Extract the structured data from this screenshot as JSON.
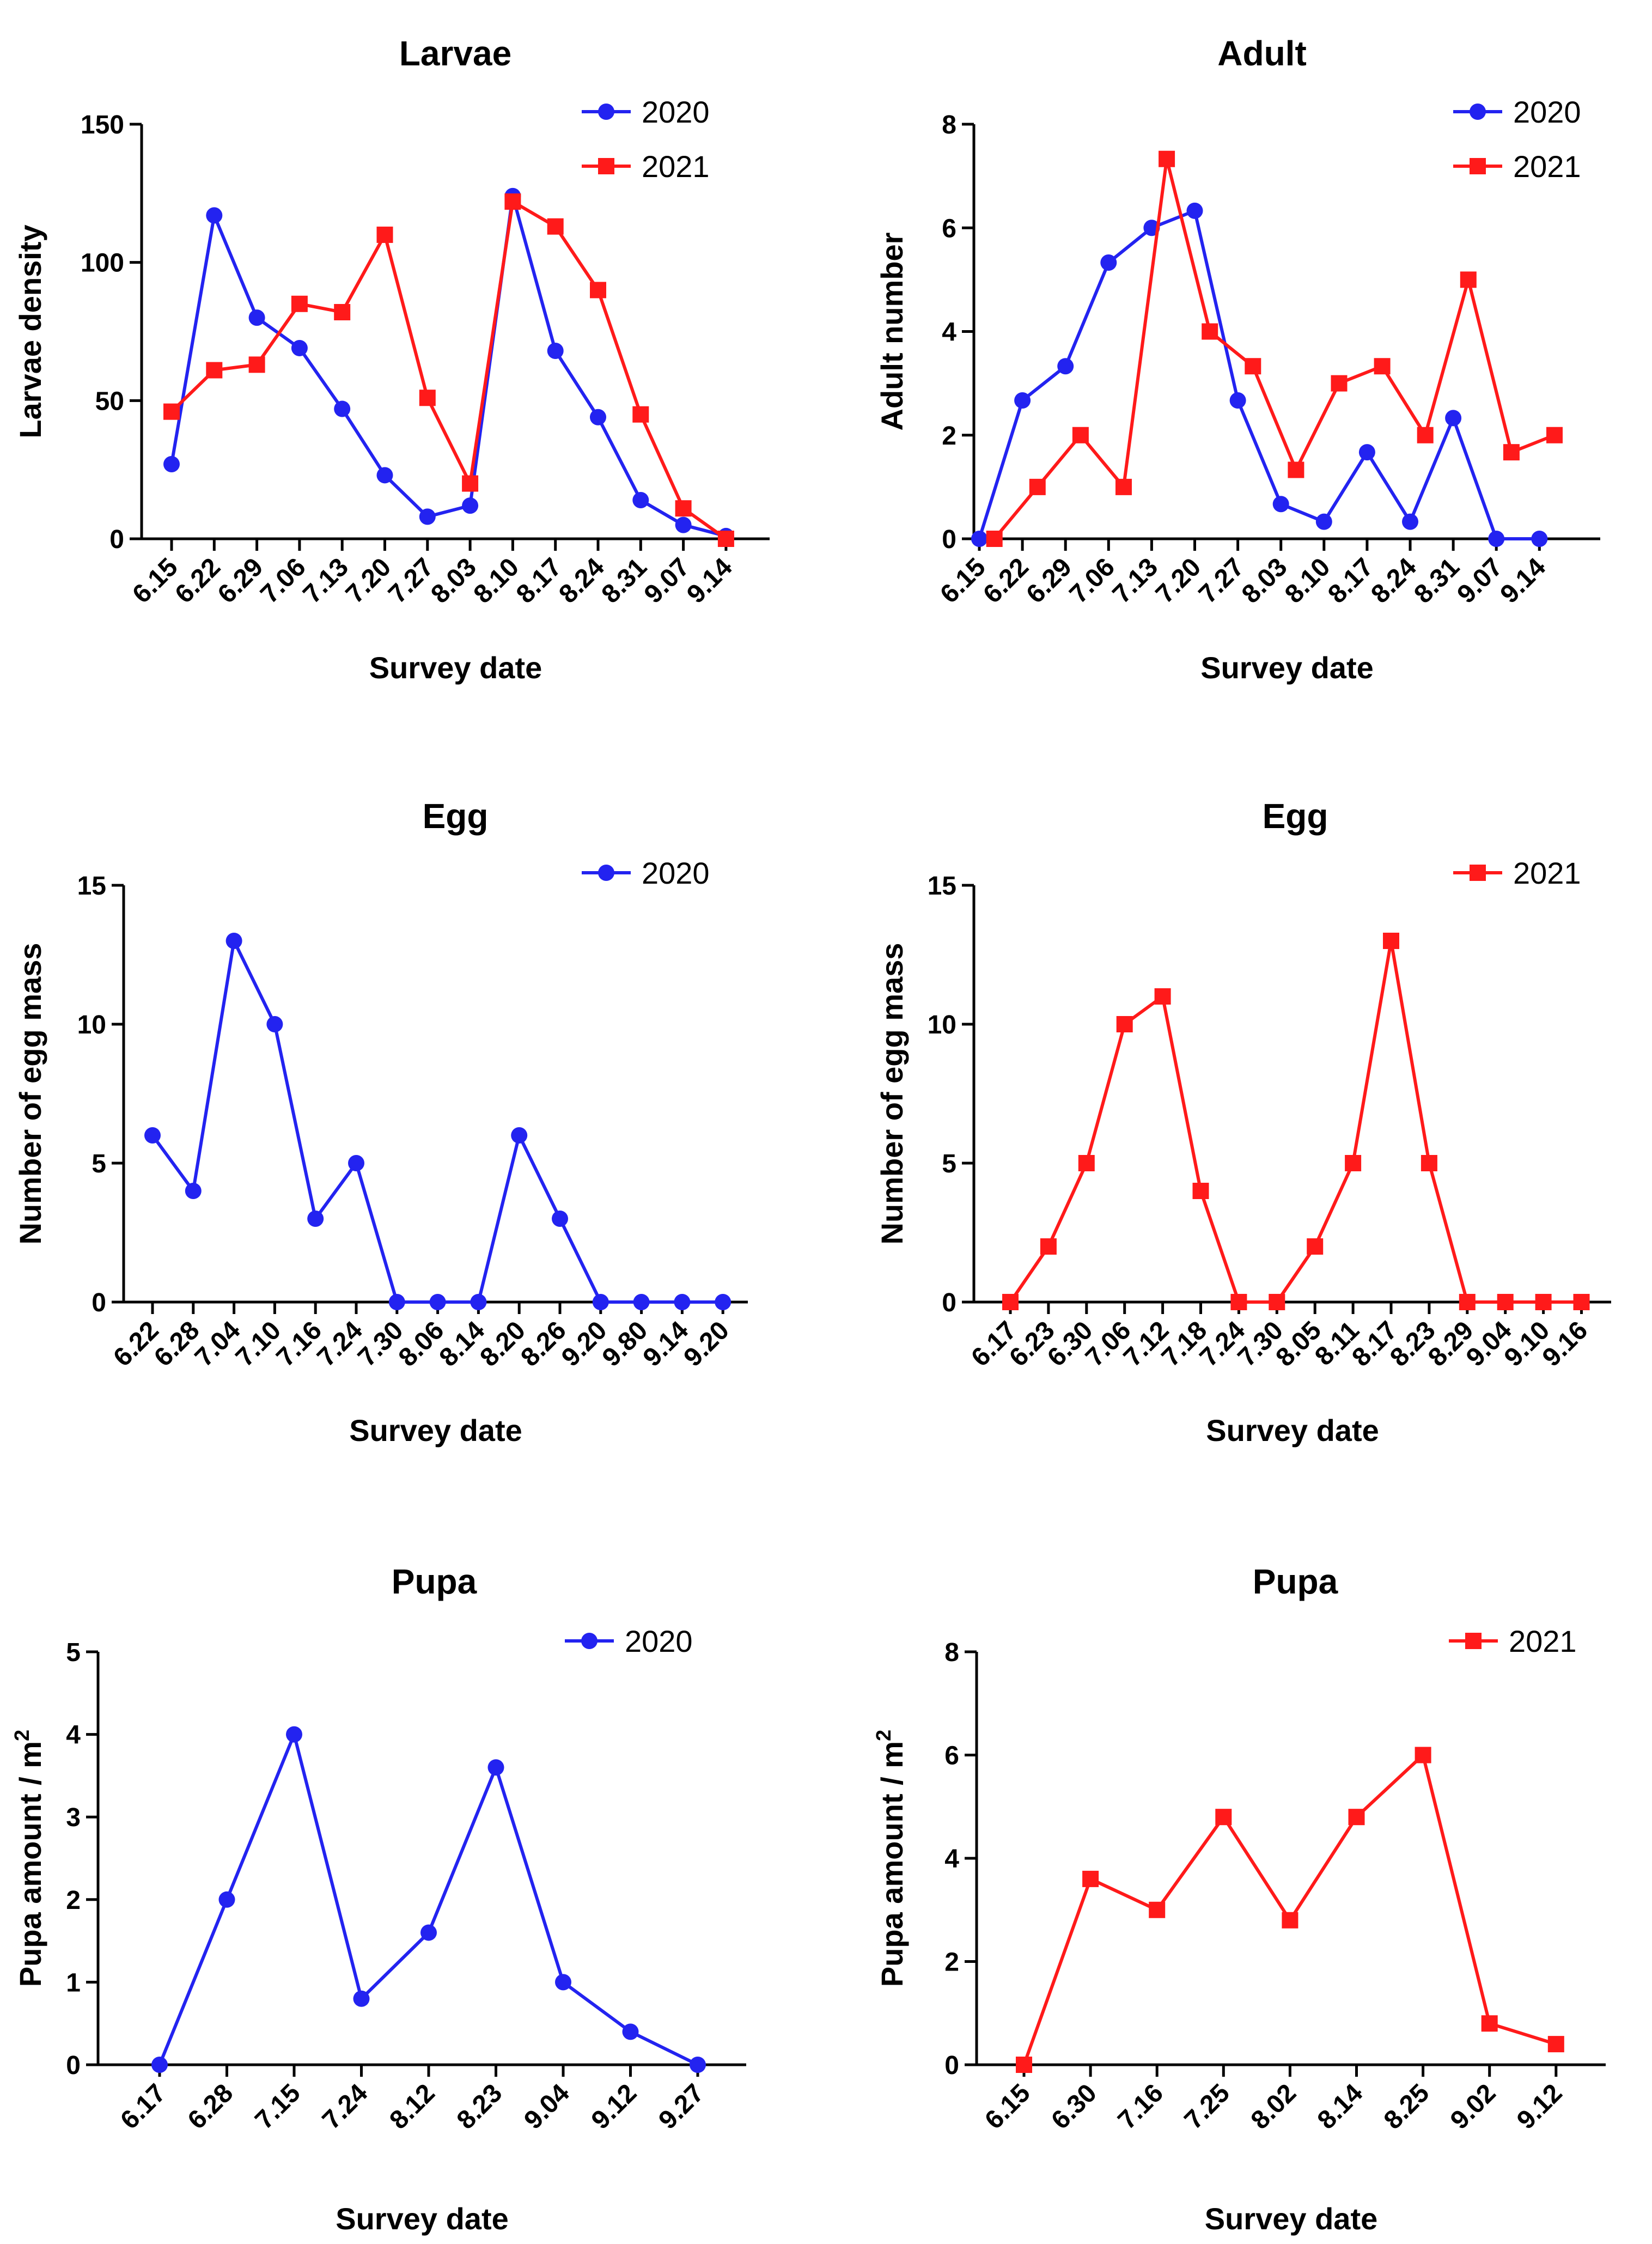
{
  "chart_data": [
    {
      "type": "line",
      "title": "Larvae",
      "xlabel": "Survey date",
      "ylabel": "Larvae density",
      "ylim": [
        0,
        150
      ],
      "yticks": [
        "0",
        "50",
        "100",
        "150"
      ],
      "categories": [
        "6.15",
        "6.22",
        "6.29",
        "7.06",
        "7.13",
        "7.20",
        "7.27",
        "8.03",
        "8.10",
        "8.17",
        "8.24",
        "8.31",
        "9.07",
        "9.14"
      ],
      "legend": "top-right",
      "series": [
        {
          "name": "2020",
          "color": "#2323f0",
          "marker": "circle",
          "offset": 0,
          "values": [
            27,
            117,
            80,
            69,
            47,
            23,
            8,
            12,
            124,
            68,
            44,
            14,
            5,
            1
          ]
        },
        {
          "name": "2021",
          "color": "#ff1a1a",
          "marker": "square",
          "offset": 0,
          "values": [
            46,
            61,
            63,
            85,
            82,
            110,
            51,
            20,
            122,
            113,
            90,
            45,
            11,
            0
          ]
        }
      ]
    },
    {
      "type": "line",
      "title": "Adult",
      "xlabel": "Survey date",
      "ylabel": "Adult number",
      "ylim": [
        0,
        8
      ],
      "yticks": [
        "0",
        "2",
        "4",
        "6",
        "8"
      ],
      "categories": [
        "6.15",
        "6.22",
        "6.29",
        "7.06",
        "7.13",
        "7.20",
        "7.27",
        "8.03",
        "8.10",
        "8.17",
        "8.24",
        "8.31",
        "9.07",
        "9.14"
      ],
      "legend": "top-right",
      "series": [
        {
          "name": "2020",
          "color": "#2323f0",
          "marker": "circle",
          "offset": 0,
          "values": [
            0,
            2.67,
            3.33,
            5.33,
            6,
            6.33,
            2.67,
            0.67,
            0.33,
            1.67,
            0.33,
            2.33,
            0,
            0
          ]
        },
        {
          "name": "2021",
          "color": "#ff1a1a",
          "marker": "square",
          "offset": 0.35,
          "values": [
            0,
            1,
            2,
            1,
            7.33,
            4,
            3.33,
            1.33,
            3,
            3.33,
            2,
            5,
            1.67,
            2
          ]
        }
      ]
    },
    {
      "type": "line",
      "title": "Egg",
      "xlabel": "Survey date",
      "ylabel": "Number of egg mass",
      "ylim": [
        0,
        15
      ],
      "yticks": [
        "0",
        "5",
        "10",
        "15"
      ],
      "categories": [
        "6.22",
        "6.28",
        "7.04",
        "7.10",
        "7.16",
        "7.24",
        "7.30",
        "8.06",
        "8.14",
        "8.20",
        "8.26",
        "9.20",
        "9.80",
        "9.14",
        "9.20"
      ],
      "legend": "top-right",
      "series": [
        {
          "name": "2020",
          "color": "#2323f0",
          "marker": "circle",
          "offset": 0,
          "values": [
            6,
            4,
            13,
            10,
            3,
            5,
            0,
            0,
            0,
            6,
            3,
            0,
            0,
            0,
            0
          ]
        }
      ]
    },
    {
      "type": "line",
      "title": "Egg",
      "xlabel": "Survey date",
      "ylabel": "Number of egg mass",
      "ylim": [
        0,
        15
      ],
      "yticks": [
        "0",
        "5",
        "10",
        "15"
      ],
      "categories": [
        "6.17",
        "6.23",
        "6.30",
        "7.06",
        "7.12",
        "7.18",
        "7.24",
        "7.30",
        "8.05",
        "8.11",
        "8.17",
        "8.23",
        "8.29",
        "9.04",
        "9.10",
        "9.16"
      ],
      "legend": "top-right",
      "series": [
        {
          "name": "2021",
          "color": "#ff1a1a",
          "marker": "square",
          "offset": 0,
          "values": [
            0,
            2,
            5,
            10,
            11,
            4,
            0,
            0,
            2,
            5,
            13,
            5,
            0,
            0,
            0,
            0
          ]
        }
      ]
    },
    {
      "type": "line",
      "title": "Pupa",
      "xlabel": "Survey date",
      "ylabel": "Pupa amount / m",
      "ylabel_sup": "2",
      "ylim": [
        0,
        5
      ],
      "yticks": [
        "0",
        "1",
        "2",
        "3",
        "4",
        "5"
      ],
      "categories": [
        "6.17",
        "6.28",
        "7.15",
        "7.24",
        "8.12",
        "8.23",
        "9.04",
        "9.12",
        "9.27"
      ],
      "legend": "top-right",
      "series": [
        {
          "name": "2020",
          "color": "#2323f0",
          "marker": "circle",
          "offset": 0,
          "values": [
            0,
            2,
            4,
            0.8,
            1.6,
            3.6,
            1,
            0.4,
            0
          ]
        }
      ]
    },
    {
      "type": "line",
      "title": "Pupa",
      "xlabel": "Survey date",
      "ylabel": "Pupa amount / m",
      "ylabel_sup": "2",
      "ylim": [
        0,
        8
      ],
      "yticks": [
        "0",
        "2",
        "4",
        "6",
        "8"
      ],
      "categories": [
        "6.15",
        "6.30",
        "7.16",
        "7.25",
        "8.02",
        "8.14",
        "8.25",
        "9.02",
        "9.12"
      ],
      "legend": "top-right",
      "series": [
        {
          "name": "2021",
          "color": "#ff1a1a",
          "marker": "square",
          "offset": 0,
          "values": [
            0,
            3.6,
            3,
            4.8,
            2.8,
            4.8,
            6,
            0.8,
            0.4
          ]
        }
      ]
    }
  ]
}
